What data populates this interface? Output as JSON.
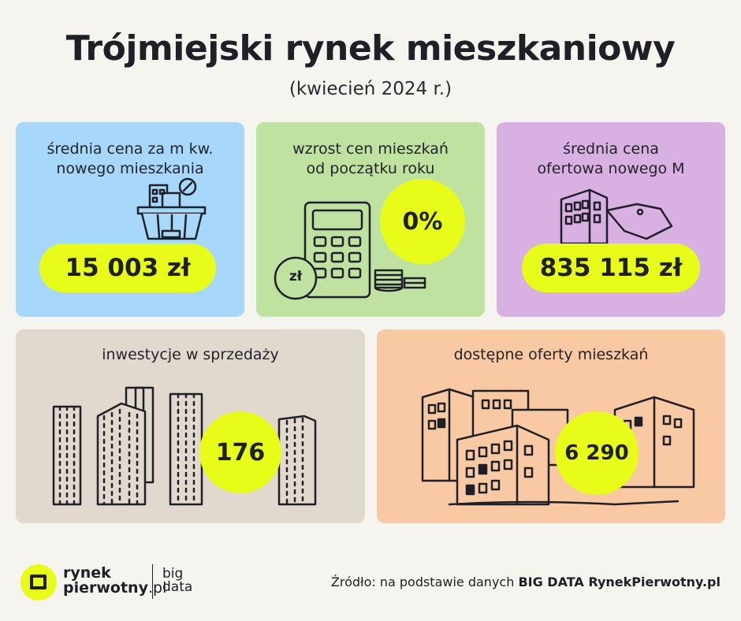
{
  "header": {
    "title": "Trójmiejski rynek mieszkaniowy",
    "subtitle": "(kwiecień 2024 r.)"
  },
  "cards": [
    {
      "label_line1": "średnia cena za m kw.",
      "label_line2": "nowego mieszkania",
      "value": "15 003 zł",
      "color": "#a7d8fb"
    },
    {
      "label_line1": "wzrost cen mieszkań",
      "label_line2": "od początku roku",
      "value": "0%",
      "color": "#bfe2a0",
      "icon_text": "zł"
    },
    {
      "label_line1": "średnia cena",
      "label_line2": "ofertowa nowego M",
      "value": "835 115 zł",
      "color": "#d8b0e1"
    },
    {
      "label_line1": "inwestycje w sprzedaży",
      "value": "176",
      "color": "#e1d8ce"
    },
    {
      "label_line1": "dostępne oferty mieszkań",
      "value": "6 290",
      "color": "#f8c9a2"
    }
  ],
  "accent_color": "#e8fc1a",
  "footer": {
    "logo_line1": "rynek",
    "logo_line2": "pierwotny",
    "logo_suffix": ".pl",
    "bigdata_line1": "big",
    "bigdata_line2": "data",
    "source_prefix": "Źródło: na podstawie danych ",
    "source_bold": "BIG DATA RynekPierwotny.pl"
  }
}
